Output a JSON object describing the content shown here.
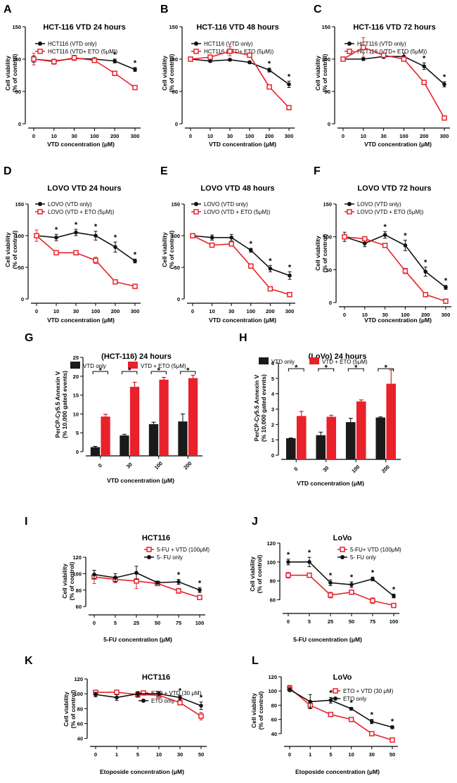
{
  "colors": {
    "control": "#111111",
    "treated": "#e8212a",
    "bar_control": "#1a1a1a",
    "bar_treated": "#e8212a"
  },
  "chart_data": [
    {
      "panel": "A",
      "type": "line",
      "title": "HCT-116 VTD 24 hours",
      "xlabel": "VTD concentration (μM)",
      "ylabel": [
        "Cell viability",
        "(% of control)"
      ],
      "categories": [
        "0",
        "10",
        "30",
        "100",
        "200",
        "300"
      ],
      "ylim": [
        0,
        150
      ],
      "yticks": [
        0,
        50,
        100,
        150
      ],
      "series": [
        {
          "name": "HCT116 (VTD only)",
          "style": "control",
          "values": [
            100,
            97,
            101,
            100,
            97,
            84
          ],
          "err": [
            5,
            3,
            3,
            2,
            3,
            3
          ]
        },
        {
          "name": "HCT116 (VTD+ ETO (5μM))",
          "style": "treated",
          "values": [
            100,
            96,
            102,
            98,
            78,
            56
          ],
          "err": [
            9,
            4,
            4,
            3,
            3,
            3
          ]
        }
      ],
      "stars": [
        4,
        5
      ]
    },
    {
      "panel": "B",
      "type": "line",
      "title": "HCT-116 VTD 48 hours",
      "xlabel": "VTD concentration (μM)",
      "ylabel": [
        "Cell viability",
        "(% of control)"
      ],
      "categories": [
        "0",
        "10",
        "30",
        "100",
        "200",
        "300"
      ],
      "ylim": [
        0,
        150
      ],
      "yticks": [
        0,
        50,
        100,
        150
      ],
      "series": [
        {
          "name": "HCT116 (VTD only)",
          "style": "control",
          "values": [
            100,
            97,
            99,
            95,
            83,
            61
          ],
          "err": [
            2,
            2,
            2,
            2,
            3,
            5
          ]
        },
        {
          "name": "HCT116 (VTD+ ETO (5μM))",
          "style": "treated",
          "values": [
            100,
            103,
            112,
            106,
            57,
            25
          ],
          "err": [
            2,
            3,
            7,
            3,
            3,
            3
          ]
        }
      ],
      "stars": [
        4,
        5
      ]
    },
    {
      "panel": "C",
      "type": "line",
      "title": "HCT-116 VTD 72 hours",
      "xlabel": "VTD concentration (μM)",
      "ylabel": [
        "Cell viability",
        "(% of control)"
      ],
      "categories": [
        "0",
        "10",
        "30",
        "100",
        "200",
        "300"
      ],
      "ylim": [
        0,
        150
      ],
      "yticks": [
        0,
        50,
        100,
        150
      ],
      "series": [
        {
          "name": "HCT116 (VTD only)",
          "style": "control",
          "values": [
            100,
            100,
            104,
            104,
            89,
            61
          ],
          "err": [
            2,
            2,
            3,
            5,
            5,
            4
          ]
        },
        {
          "name": "HCT116 (VTD+ ETO (5μM))",
          "style": "treated",
          "values": [
            100,
            118,
            106,
            100,
            64,
            9
          ],
          "err": [
            2,
            15,
            3,
            3,
            3,
            2
          ]
        }
      ],
      "stars": [
        4,
        5
      ]
    },
    {
      "panel": "D",
      "type": "line",
      "title": "LOVO VTD 24 hours",
      "xlabel": "VTD concentration (μM)",
      "ylabel": [
        "Cell viability",
        "(% of control)"
      ],
      "categories": [
        "0",
        "10",
        "30",
        "100",
        "200",
        "300"
      ],
      "ylim": [
        0,
        150
      ],
      "yticks": [
        0,
        50,
        100,
        150
      ],
      "series": [
        {
          "name": "LOVO (VTD only)",
          "style": "control",
          "values": [
            100,
            97,
            105,
            100,
            82,
            60
          ],
          "err": [
            3,
            5,
            5,
            7,
            8,
            3
          ]
        },
        {
          "name": "LOVO (VTD + ETO (5μM))",
          "style": "treated",
          "values": [
            100,
            73,
            73,
            61,
            27,
            20
          ],
          "err": [
            9,
            3,
            3,
            5,
            3,
            3
          ]
        }
      ],
      "stars": [
        1,
        2,
        3,
        4,
        5
      ]
    },
    {
      "panel": "E",
      "type": "line",
      "title": "LOVO VTD 48 hours",
      "xlabel": "VTD concentration (μM)",
      "ylabel": [
        "Cell viability",
        "(% of control)"
      ],
      "categories": [
        "0",
        "10",
        "30",
        "100",
        "200",
        "300"
      ],
      "ylim": [
        0,
        150
      ],
      "yticks": [
        0,
        50,
        100,
        150
      ],
      "series": [
        {
          "name": "LOVO (VTD only)",
          "style": "control",
          "values": [
            100,
            97,
            97,
            77,
            48,
            37
          ],
          "err": [
            2,
            4,
            5,
            3,
            5,
            6
          ]
        },
        {
          "name": "LOVO (VTD + ETO (5μM))",
          "style": "treated",
          "values": [
            100,
            85,
            87,
            52,
            16,
            7
          ],
          "err": [
            3,
            3,
            3,
            3,
            3,
            2
          ]
        }
      ],
      "stars": [
        3,
        4,
        5
      ]
    },
    {
      "panel": "F",
      "type": "line",
      "title": "LOVO VTD 72 hours",
      "xlabel": "VTD concentration (μM)",
      "ylabel": [
        "Cell viability",
        "(% of control)"
      ],
      "categories": [
        "0",
        "10",
        "30",
        "100",
        "200",
        "300"
      ],
      "ylim": [
        0,
        150
      ],
      "yticks": [
        0,
        50,
        100,
        150
      ],
      "series": [
        {
          "name": "LOVO (VTD only)",
          "style": "control",
          "values": [
            100,
            90,
            103,
            87,
            47,
            23
          ],
          "err": [
            7,
            5,
            5,
            8,
            7,
            3
          ]
        },
        {
          "name": "LOVO (VTD + ETO (5μM))",
          "style": "treated",
          "values": [
            100,
            97,
            87,
            48,
            12,
            2
          ],
          "err": [
            2,
            3,
            3,
            4,
            3,
            1
          ]
        }
      ],
      "stars": [
        2,
        3,
        4,
        5
      ]
    },
    {
      "panel": "G",
      "type": "bar",
      "title": "(HCT-116) 24 hours",
      "xlabel": "VTD concentration (μM)",
      "ylabel": [
        "PerCP-Cy5.5 Annexin V",
        "(% 10,000 gated events)"
      ],
      "categories": [
        "0",
        "30",
        "100",
        "200"
      ],
      "ylim": [
        0,
        25
      ],
      "yticks": [
        0,
        5,
        10,
        15,
        20,
        25
      ],
      "series": [
        {
          "name": "VTD only",
          "style": "bar_control",
          "values": [
            1.2,
            4.3,
            7.3,
            8.0
          ],
          "err": [
            0.2,
            0.3,
            0.5,
            2.0
          ]
        },
        {
          "name": "VTD + ETO (5μM)",
          "style": "bar_treated",
          "values": [
            9.3,
            17.2,
            19.1,
            19.5
          ],
          "err": [
            0.6,
            1.2,
            0.6,
            0.8
          ]
        }
      ],
      "stars": [
        0,
        1,
        2,
        3
      ]
    },
    {
      "panel": "H",
      "type": "bar",
      "title": "(LoVo) 24 hours",
      "xlabel": "VTD concentration (μM)",
      "ylabel": [
        "PerCP-Cy5.5 Annexin V",
        "(% 10,000 gated events)"
      ],
      "categories": [
        "0",
        "30",
        "100",
        "200"
      ],
      "ylim": [
        0,
        6
      ],
      "yticks": [
        0,
        1,
        2,
        3,
        4,
        5,
        6
      ],
      "series": [
        {
          "name": "VTD only",
          "style": "bar_control",
          "values": [
            1.1,
            1.3,
            2.15,
            2.45
          ],
          "err": [
            0.02,
            0.2,
            0.25,
            0.04
          ]
        },
        {
          "name": "VTD + ETO (5μM)",
          "style": "bar_treated",
          "values": [
            2.55,
            2.5,
            3.5,
            4.65
          ],
          "err": [
            0.3,
            0.1,
            0.1,
            0.9
          ]
        }
      ],
      "stars": [
        0,
        1,
        2,
        3
      ]
    },
    {
      "panel": "I",
      "type": "line",
      "title": "HCT116",
      "xlabel": "5-FU concentration (μM)",
      "ylabel": [
        "Cell viability",
        "(% of control)"
      ],
      "categories": [
        "0",
        "5",
        "25",
        "50",
        "75",
        "100"
      ],
      "ylim": [
        55,
        120
      ],
      "yticks": [
        60,
        80,
        100,
        120
      ],
      "ymin_axis": 60,
      "series": [
        {
          "name": "5-FU + VTD (100μM)",
          "style": "treated",
          "values": [
            96,
            93,
            91,
            88,
            79,
            71
          ],
          "err": [
            8,
            4,
            9,
            2,
            3,
            2
          ]
        },
        {
          "name": "5- FU only",
          "style": "control",
          "values": [
            99,
            95,
            101,
            89,
            90,
            80
          ],
          "err": [
            5,
            5,
            8,
            2,
            3,
            3
          ]
        }
      ],
      "stars": [
        4,
        5
      ]
    },
    {
      "panel": "J",
      "type": "line",
      "title": "LoVo",
      "xlabel": "5-FU concentration (μM)",
      "ylabel": [
        "Cell viability",
        "(% of control)"
      ],
      "categories": [
        "0",
        "5",
        "25",
        "50",
        "75",
        "100"
      ],
      "ylim": [
        50,
        120
      ],
      "yticks": [
        60,
        80,
        100,
        120
      ],
      "ymin_axis": 60,
      "series": [
        {
          "name": "5-FU+ VTD (100μM)",
          "style": "treated",
          "values": [
            86,
            86,
            65,
            68,
            59,
            54
          ],
          "err": [
            3,
            2,
            3,
            2,
            3,
            2
          ]
        },
        {
          "name": "5- FU only",
          "style": "control",
          "values": [
            100,
            100,
            78,
            76,
            82,
            64
          ],
          "err": [
            3,
            5,
            3,
            3,
            2,
            2
          ]
        }
      ],
      "stars": [
        0,
        1,
        2,
        3,
        4,
        5
      ]
    },
    {
      "panel": "K",
      "type": "line",
      "title": "HCT116",
      "xlabel": "Etoposide concentration (μM)",
      "ylabel": [
        "Cell viability",
        "(% of control)"
      ],
      "categories": [
        "0",
        "1",
        "5",
        "10",
        "30",
        "50"
      ],
      "ylim": [
        35,
        120
      ],
      "yticks": [
        40,
        60,
        80,
        100,
        120
      ],
      "ymin_axis": 40,
      "series": [
        {
          "name": "ETO + VTD (30 μM)",
          "style": "treated",
          "values": [
            102,
            102,
            99,
            98,
            88,
            70
          ],
          "err": [
            2,
            2,
            4,
            5,
            3,
            5
          ]
        },
        {
          "name": "ETO only",
          "style": "control",
          "values": [
            99,
            95,
            100,
            100,
            95,
            84
          ],
          "err": [
            3,
            4,
            3,
            3,
            3,
            5
          ]
        }
      ],
      "stars": [
        4,
        5
      ]
    },
    {
      "panel": "L",
      "type": "line",
      "title": "LoVo",
      "xlabel": "Etoposide concentration (μM)",
      "ylabel": [
        "Cell viability",
        "(% of control)"
      ],
      "categories": [
        "0",
        "1",
        "5",
        "10",
        "30",
        "50"
      ],
      "ylim": [
        28,
        120
      ],
      "yticks": [
        40,
        60,
        80,
        100,
        120
      ],
      "ymin_axis": 40,
      "series": [
        {
          "name": "ETO + VTD (30 μM)",
          "style": "treated",
          "values": [
            104,
            80,
            67,
            60,
            40,
            31
          ],
          "err": [
            4,
            4,
            2,
            3,
            2,
            1
          ]
        },
        {
          "name": "ETO only",
          "style": "control",
          "values": [
            102,
            85,
            87,
            75,
            57,
            49
          ],
          "err": [
            3,
            10,
            4,
            2,
            3,
            2
          ]
        }
      ],
      "stars": [
        2,
        3,
        4,
        5
      ]
    }
  ]
}
